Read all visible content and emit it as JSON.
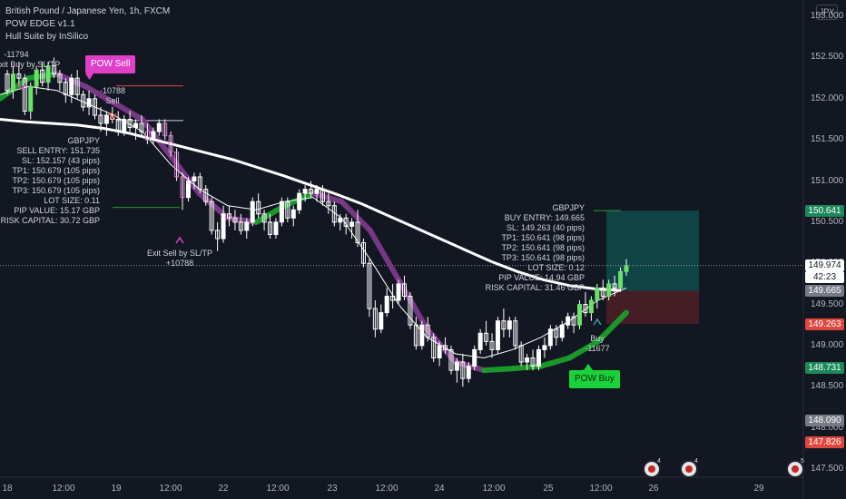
{
  "legend": {
    "symbol_title": "British Pound / Japanese Yen, 1h, FXCM",
    "indicator_1": "POW EDGE v1.1",
    "indicator_2": "Hull Suite by InSilico"
  },
  "currency_button": "JPY",
  "colors": {
    "background": "#131722",
    "up_candle": "#ffffff",
    "down_candle": "#ffffff",
    "hull_up": "#1a9e2a",
    "hull_down": "#7b3a8a",
    "ema": "#ffffff",
    "tp_zone": "#0f4c4c",
    "sl_zone": "#4a1f25",
    "pow_sell": "#e040c8",
    "pow_buy": "#19d23a",
    "price_current": "#ffffff",
    "tag_green": "#1b8a5a",
    "tag_red": "#e0473f",
    "tag_grey": "#787b86"
  },
  "chart_data": {
    "type": "candlestick",
    "symbol": "GBPJPY",
    "interval": "1h",
    "ylim": [
      147.4,
      153.2
    ],
    "yticks": [
      "153.000",
      "152.500",
      "152.000",
      "151.500",
      "151.000",
      "150.500",
      "150.000",
      "149.500",
      "149.000",
      "148.500",
      "148.000",
      "147.500"
    ],
    "x_labels": [
      "18",
      "12:00",
      "19",
      "12:00",
      "22",
      "12:00",
      "23",
      "12:00",
      "24",
      "12:00",
      "25",
      "12:00",
      "26",
      "29"
    ],
    "bars": [
      [
        152.3,
        152.35,
        152.05,
        152.1
      ],
      [
        152.1,
        152.4,
        152.0,
        152.3
      ],
      [
        152.3,
        152.45,
        152.15,
        152.25
      ],
      [
        152.25,
        152.3,
        151.8,
        151.85
      ],
      [
        151.85,
        152.2,
        151.75,
        152.15
      ],
      [
        152.15,
        152.4,
        152.05,
        152.35
      ],
      [
        152.35,
        152.45,
        152.15,
        152.2
      ],
      [
        152.2,
        152.45,
        152.1,
        152.4
      ],
      [
        152.4,
        152.5,
        152.25,
        152.3
      ],
      [
        152.3,
        152.35,
        152.1,
        152.2
      ],
      [
        152.2,
        152.25,
        151.95,
        152.05
      ],
      [
        152.05,
        152.3,
        151.95,
        152.25
      ],
      [
        152.25,
        152.35,
        152.0,
        152.05
      ],
      [
        152.05,
        152.1,
        151.85,
        151.9
      ],
      [
        151.9,
        152.1,
        151.8,
        152.0
      ],
      [
        152.0,
        152.05,
        151.75,
        151.8
      ],
      [
        151.8,
        151.9,
        151.6,
        151.7
      ],
      [
        151.7,
        151.85,
        151.55,
        151.8
      ],
      [
        151.8,
        151.9,
        151.7,
        151.75
      ],
      [
        151.75,
        151.85,
        151.55,
        151.6
      ],
      [
        151.6,
        151.8,
        151.55,
        151.75
      ],
      [
        151.75,
        151.85,
        151.6,
        151.65
      ],
      [
        151.65,
        151.75,
        151.5,
        151.7
      ],
      [
        151.7,
        151.8,
        151.55,
        151.6
      ],
      [
        151.6,
        151.7,
        151.45,
        151.5
      ],
      [
        151.5,
        151.65,
        151.45,
        151.6
      ],
      [
        151.6,
        151.75,
        151.55,
        151.7
      ],
      [
        151.7,
        151.75,
        151.5,
        151.55
      ],
      [
        151.55,
        151.6,
        151.3,
        151.35
      ],
      [
        151.35,
        151.4,
        151.0,
        151.05
      ],
      [
        151.05,
        151.1,
        150.65,
        150.8
      ],
      [
        150.8,
        151.05,
        150.75,
        151.0
      ],
      [
        151.0,
        151.1,
        150.9,
        151.05
      ],
      [
        151.05,
        151.1,
        150.85,
        150.9
      ],
      [
        150.9,
        150.95,
        150.7,
        150.75
      ],
      [
        150.75,
        150.8,
        150.35,
        150.4
      ],
      [
        150.4,
        150.5,
        150.15,
        150.3
      ],
      [
        150.3,
        150.7,
        150.25,
        150.6
      ],
      [
        150.6,
        150.7,
        150.45,
        150.55
      ],
      [
        150.55,
        150.65,
        150.4,
        150.5
      ],
      [
        150.5,
        150.6,
        150.35,
        150.4
      ],
      [
        150.4,
        150.55,
        150.3,
        150.5
      ],
      [
        150.5,
        150.8,
        150.45,
        150.75
      ],
      [
        150.75,
        150.85,
        150.55,
        150.6
      ],
      [
        150.6,
        150.65,
        150.4,
        150.5
      ],
      [
        150.5,
        150.6,
        150.3,
        150.35
      ],
      [
        150.35,
        150.55,
        150.3,
        150.5
      ],
      [
        150.5,
        150.8,
        150.45,
        150.75
      ],
      [
        150.75,
        150.8,
        150.5,
        150.55
      ],
      [
        150.55,
        150.7,
        150.45,
        150.65
      ],
      [
        150.65,
        150.9,
        150.6,
        150.85
      ],
      [
        150.85,
        150.95,
        150.75,
        150.9
      ],
      [
        150.9,
        151.0,
        150.8,
        150.85
      ],
      [
        150.85,
        150.95,
        150.75,
        150.9
      ],
      [
        150.9,
        150.95,
        150.7,
        150.75
      ],
      [
        150.75,
        150.85,
        150.6,
        150.7
      ],
      [
        150.7,
        150.75,
        150.45,
        150.5
      ],
      [
        150.5,
        150.6,
        150.4,
        150.55
      ],
      [
        150.55,
        150.6,
        150.35,
        150.45
      ],
      [
        150.45,
        150.55,
        150.3,
        150.5
      ],
      [
        150.5,
        150.65,
        150.2,
        150.25
      ],
      [
        150.25,
        150.3,
        149.95,
        150.0
      ],
      [
        150.0,
        150.05,
        149.35,
        149.45
      ],
      [
        149.45,
        149.55,
        149.1,
        149.2
      ],
      [
        149.2,
        149.5,
        149.15,
        149.4
      ],
      [
        149.4,
        149.7,
        149.35,
        149.6
      ],
      [
        149.6,
        149.75,
        149.45,
        149.55
      ],
      [
        149.55,
        149.8,
        149.5,
        149.75
      ],
      [
        149.75,
        149.85,
        149.55,
        149.6
      ],
      [
        149.6,
        149.65,
        149.2,
        149.25
      ],
      [
        149.25,
        149.35,
        148.95,
        149.0
      ],
      [
        149.0,
        149.3,
        148.95,
        149.25
      ],
      [
        149.25,
        149.35,
        149.05,
        149.1
      ],
      [
        149.1,
        149.15,
        148.8,
        148.85
      ],
      [
        148.85,
        149.05,
        148.75,
        149.0
      ],
      [
        149.0,
        149.1,
        148.9,
        148.95
      ],
      [
        148.95,
        149.0,
        148.65,
        148.7
      ],
      [
        148.7,
        148.85,
        148.55,
        148.8
      ],
      [
        148.8,
        148.9,
        148.5,
        148.6
      ],
      [
        148.6,
        148.8,
        148.55,
        148.75
      ],
      [
        148.75,
        149.0,
        148.7,
        148.95
      ],
      [
        148.95,
        149.2,
        148.9,
        149.15
      ],
      [
        149.15,
        149.3,
        149.0,
        149.05
      ],
      [
        149.05,
        149.15,
        148.85,
        148.95
      ],
      [
        148.95,
        149.35,
        148.9,
        149.3
      ],
      [
        149.3,
        149.45,
        149.1,
        149.2
      ],
      [
        149.2,
        149.35,
        149.1,
        149.3
      ],
      [
        149.3,
        149.35,
        148.95,
        149.0
      ],
      [
        149.0,
        149.05,
        148.75,
        148.8
      ],
      [
        148.8,
        148.9,
        148.7,
        148.85
      ],
      [
        148.85,
        148.95,
        148.7,
        148.75
      ],
      [
        148.75,
        149.0,
        148.7,
        148.95
      ],
      [
        148.95,
        149.1,
        148.85,
        149.0
      ],
      [
        149.0,
        149.25,
        148.95,
        149.2
      ],
      [
        149.2,
        149.25,
        149.0,
        149.1
      ],
      [
        149.1,
        149.3,
        149.05,
        149.25
      ],
      [
        149.25,
        149.4,
        149.2,
        149.35
      ],
      [
        149.35,
        149.4,
        149.15,
        149.25
      ],
      [
        149.25,
        149.55,
        149.2,
        149.5
      ],
      [
        149.5,
        149.65,
        149.35,
        149.4
      ],
      [
        149.4,
        149.6,
        149.3,
        149.55
      ],
      [
        149.55,
        149.75,
        149.45,
        149.7
      ],
      [
        149.7,
        149.8,
        149.55,
        149.6
      ],
      [
        149.6,
        149.8,
        149.55,
        149.75
      ],
      [
        149.75,
        149.85,
        149.6,
        149.7
      ],
      [
        149.7,
        149.95,
        149.65,
        149.9
      ],
      [
        149.9,
        150.05,
        149.85,
        149.97
      ]
    ],
    "ema_values": [
      151.75,
      151.72,
      151.7,
      151.68,
      151.64,
      151.58,
      151.5,
      151.42,
      151.34,
      151.26,
      151.16,
      151.06,
      150.95,
      150.84,
      150.72,
      150.58,
      150.44,
      150.3,
      150.16,
      150.02,
      149.9,
      149.8,
      149.73,
      149.69,
      149.67
    ],
    "hull_values": [
      152.0,
      152.25,
      152.3,
      152.15,
      151.95,
      151.75,
      151.3,
      150.85,
      150.55,
      150.5,
      150.7,
      150.85,
      150.75,
      150.4,
      149.8,
      149.2,
      148.8,
      148.7,
      148.72,
      148.75,
      148.85,
      149.05,
      149.4
    ],
    "thin_ma_values": [
      152.05,
      152.15,
      152.1,
      151.95,
      151.8,
      151.6,
      151.2,
      150.9,
      150.7,
      150.65,
      150.75,
      150.8,
      150.55,
      150.05,
      149.5,
      149.1,
      148.9,
      148.85,
      148.95,
      149.1,
      149.3,
      149.55,
      149.7
    ],
    "current_price": "149.974",
    "countdown": "42:23"
  },
  "price_tags": [
    {
      "value": "150.641",
      "kind": "green"
    },
    {
      "value": "149.974",
      "kind": "current"
    },
    {
      "value": "42:23",
      "kind": "current"
    },
    {
      "value": "149.665",
      "kind": "grey"
    },
    {
      "value": "149.263",
      "kind": "red"
    },
    {
      "value": "148.731",
      "kind": "green"
    },
    {
      "value": "148.090",
      "kind": "grey"
    },
    {
      "value": "147.826",
      "kind": "red"
    }
  ],
  "annotations": {
    "exit_buy_top": "-11794",
    "exit_buy_label": "Exit Buy by SL/TP",
    "pow_sell_badge": "POW Sell",
    "sell_pnl": "-10788",
    "sell_label": "Sell",
    "sell_info": "GBPJPY\nSELL ENTRY: 151.735\nSL: 152.157 (43 pips)\nTP1: 150.679 (105 pips)\nTP2: 150.679 (105 pips)\nTP3: 150.679 (105 pips)\nLOT SIZE: 0.11\nPIP VALUE: 15.17 GBP\nRISK CAPITAL: 30.72 GBP",
    "exit_sell_label": "Exit Sell by SL/TP",
    "exit_sell_pnl": "+10788",
    "buy_info": "GBPJPY\nBUY ENTRY: 149.665\nSL: 149.263 (40 pips)\nTP1: 150.641 (98 pips)\nTP2: 150.641 (98 pips)\nTP3: 150.641 (98 pips)\nLOT SIZE: 0.12\nPIP VALUE: 14.94 GBP\nRISK CAPITAL: 31.46 GBP",
    "buy_label": "Buy",
    "buy_pnl": "-11677",
    "pow_buy_badge": "POW Buy"
  },
  "event_icons": [
    {
      "count": "4"
    },
    {
      "count": "4"
    },
    {
      "count": "5"
    }
  ]
}
